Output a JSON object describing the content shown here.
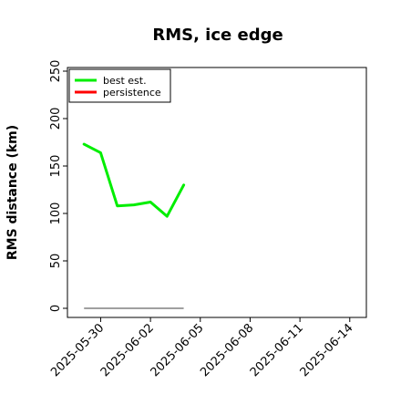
{
  "chart_data": {
    "type": "line",
    "title": "RMS, ice edge",
    "xlabel": "",
    "ylabel": "RMS distance (km)",
    "ylim": [
      0,
      250
    ],
    "xlim": [
      "2025-05-28",
      "2025-06-15"
    ],
    "x_ticks": [
      "2025-05-30",
      "2025-06-02",
      "2025-06-05",
      "2025-06-08",
      "2025-06-11",
      "2025-06-14"
    ],
    "y_ticks": [
      0,
      50,
      100,
      150,
      200,
      250
    ],
    "grid": false,
    "legend_position": "top-left",
    "series": [
      {
        "name": "best est.",
        "color": "#00ee00",
        "x": [
          "2025-05-29",
          "2025-05-30",
          "2025-05-31",
          "2025-06-01",
          "2025-06-02",
          "2025-06-03",
          "2025-06-04"
        ],
        "values": [
          173,
          164,
          108,
          109,
          112,
          97,
          130
        ]
      },
      {
        "name": "persistence",
        "color": "#ff0000",
        "x": [],
        "values": []
      }
    ],
    "annotations": [
      {
        "type": "hline",
        "y": 0,
        "x_start": "2025-05-29",
        "x_end": "2025-06-04",
        "color": "#808080"
      }
    ]
  }
}
